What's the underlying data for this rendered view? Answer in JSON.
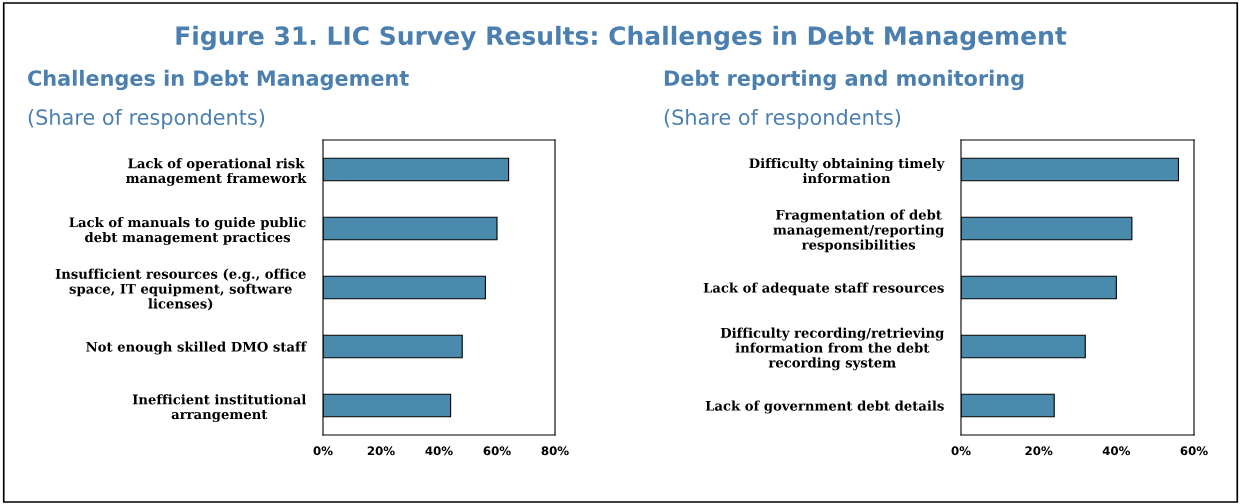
{
  "chart_data": [
    {
      "type": "bar",
      "orientation": "horizontal",
      "title": "Challenges in Debt Management",
      "subtitle": "(Share of respondents)",
      "annotations": [
        "Figure 31. LIC Survey Results: Challenges in Debt Management"
      ],
      "categories": [
        "Lack of operational risk\nmanagement framework",
        "Lack of manuals to guide public\ndebt management practices",
        "Insufficient resources (e.g., office\nspace, IT equipment, software\nlicenses)",
        "Not enough skilled DMO staff",
        "Inefficient institutional\narrangement"
      ],
      "values": [
        64,
        60,
        56,
        48,
        44
      ],
      "color": "#4a8bad",
      "xlim": [
        0,
        80
      ],
      "xticks": [
        {
          "value": 0,
          "label": "0%"
        },
        {
          "value": 20,
          "label": "20%"
        },
        {
          "value": 40,
          "label": "40%"
        },
        {
          "value": 60,
          "label": "60%"
        },
        {
          "value": 80,
          "label": "80%"
        }
      ],
      "grid": false,
      "legend": false
    },
    {
      "type": "bar",
      "orientation": "horizontal",
      "title": "Debt reporting and monitoring",
      "subtitle": "(Share of respondents)",
      "categories": [
        "Difficulty obtaining timely\ninformation",
        "Fragmentation of debt\nmanagement/reporting\nresponsibilities",
        "Lack of adequate staff resources",
        "Difficulty recording/retrieving\ninformation from the debt\nrecording system",
        "Lack of government debt details"
      ],
      "values": [
        56,
        44,
        40,
        32,
        24
      ],
      "color": "#4a8bad",
      "xlim": [
        0,
        60
      ],
      "xticks": [
        {
          "value": 0,
          "label": "0%"
        },
        {
          "value": 20,
          "label": "20%"
        },
        {
          "value": 40,
          "label": "40%"
        },
        {
          "value": 60,
          "label": "60%"
        }
      ],
      "grid": false,
      "legend": false
    }
  ]
}
